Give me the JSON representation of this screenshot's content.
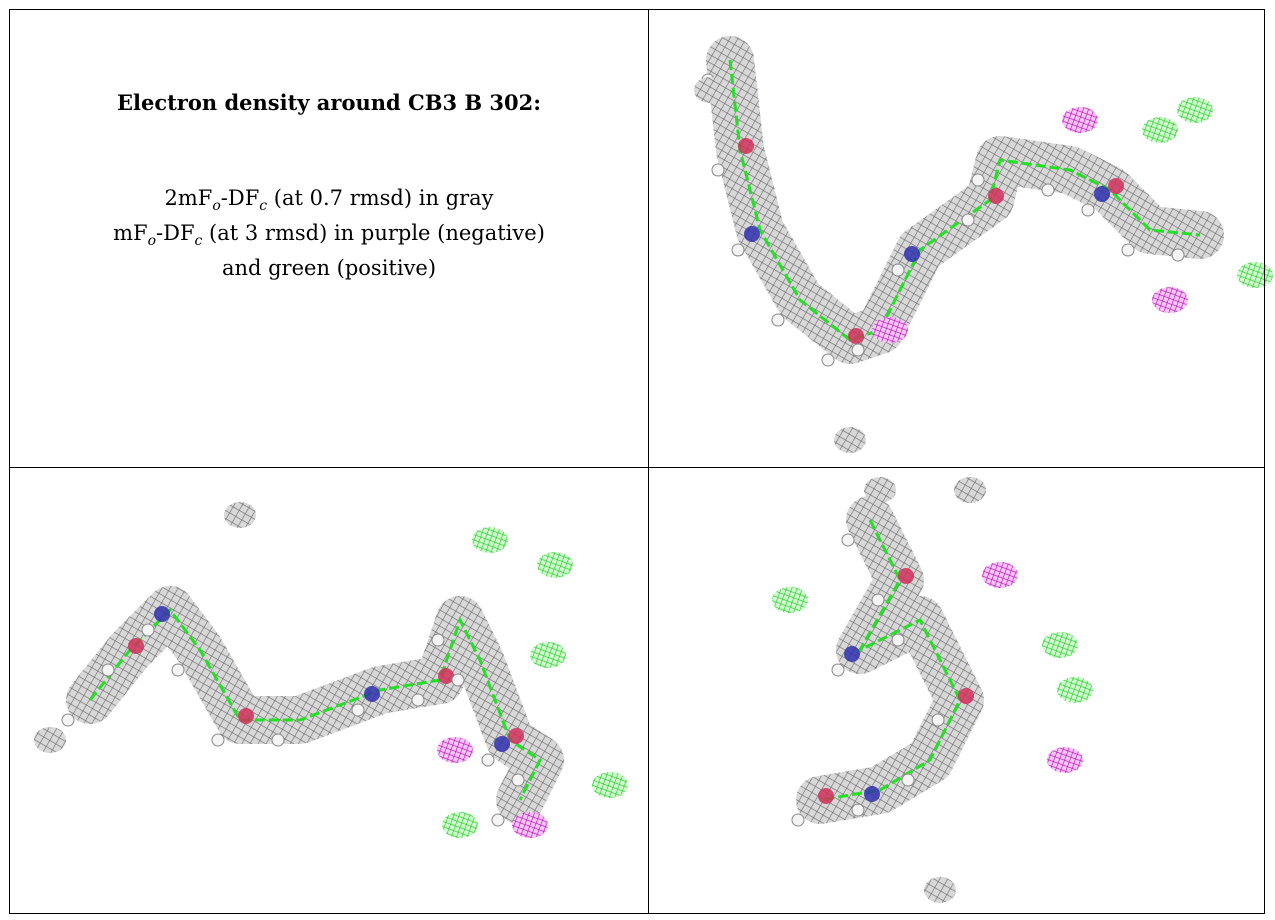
{
  "caption": {
    "title": "Electron density around CB3 B 302:",
    "lines": [
      [
        "2mF",
        "o",
        "-DF",
        "c",
        " (at 0.7 rmsd) in gray"
      ],
      [
        "mF",
        "o",
        "-DF",
        "c",
        " (at 3 rmsd) in purple (negative)"
      ],
      [
        "and green (positive)"
      ]
    ]
  }
}
